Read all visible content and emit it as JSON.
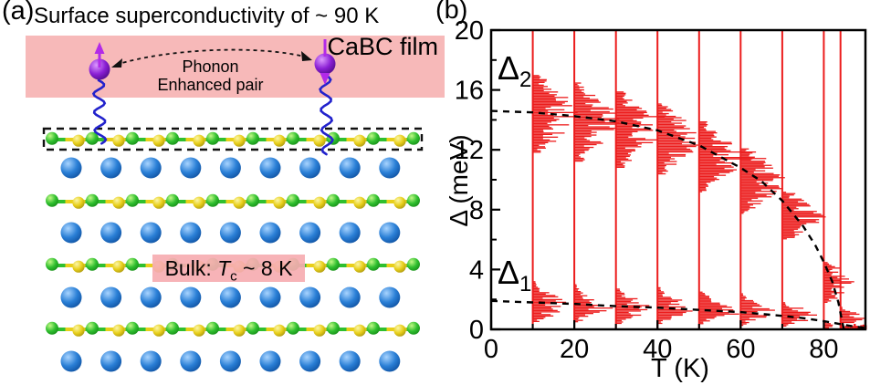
{
  "panel_a": {
    "label": "(a)",
    "title": "Surface superconductivity of ~ 90 K",
    "film_label": "CaBC film",
    "phonon_label_line1": "Phonon",
    "phonon_label_line2": "Enhanced pair",
    "bulk_label": {
      "prefix": "Bulk: ",
      "symbol": "T",
      "subscript": "c",
      "suffix": " ~ 8 K"
    },
    "colors": {
      "film_band": "#f7b9b9",
      "bulk_box": "#f6adb1",
      "ca_atom": "#2a7fd6",
      "atom_green": "#2fbf2f",
      "atom_yellow": "#e8cf1a",
      "pair_atom": "#8a1fd4",
      "spin_arrow": "#b22ae8",
      "phonon_wave": "#2222cc",
      "interaction_arrow": "#111111"
    }
  },
  "panel_b": {
    "label": "(b)"
  },
  "chart_data": {
    "type": "bar",
    "subtype": "horizontal gap-distribution histograms vs temperature with dashed BCS-like fit curves",
    "title": "",
    "xlabel": "T (K)",
    "ylabel": "Δ (meV)",
    "xlim": [
      0,
      90
    ],
    "ylim": [
      0,
      20
    ],
    "x_major_ticks": [
      0,
      20,
      40,
      60,
      80
    ],
    "x_minor_ticks": [
      10,
      30,
      50,
      70,
      90
    ],
    "y_major_ticks": [
      0,
      4,
      8,
      12,
      16,
      20
    ],
    "y_minor_ticks": [
      2,
      6,
      10,
      14,
      18
    ],
    "grid": false,
    "histogram_color": "#ec1c1c",
    "curve_color": "#000000",
    "temperatures": [
      10,
      20,
      30,
      40,
      50,
      60,
      70,
      80,
      84
    ],
    "distributions": [
      {
        "T": 10,
        "delta2_range": [
          11.8,
          17.0
        ],
        "delta1_range": [
          0.5,
          3.4
        ]
      },
      {
        "T": 20,
        "delta2_range": [
          11.2,
          16.5
        ],
        "delta1_range": [
          0.5,
          3.2
        ]
      },
      {
        "T": 30,
        "delta2_range": [
          10.8,
          15.9
        ],
        "delta1_range": [
          0.4,
          3.0
        ]
      },
      {
        "T": 40,
        "delta2_range": [
          10.4,
          15.1
        ],
        "delta1_range": [
          0.4,
          3.0
        ]
      },
      {
        "T": 50,
        "delta2_range": [
          9.2,
          13.9
        ],
        "delta1_range": [
          0.4,
          2.8
        ]
      },
      {
        "T": 60,
        "delta2_range": [
          7.8,
          12.1
        ],
        "delta1_range": [
          0.3,
          2.6
        ]
      },
      {
        "T": 70,
        "delta2_range": [
          6.0,
          9.2
        ],
        "delta1_range": [
          0.2,
          2.0
        ]
      },
      {
        "T": 80,
        "delta2_range": [
          1.8,
          4.5
        ],
        "delta1_range": [
          0.0,
          0.6
        ]
      },
      {
        "T": 84,
        "delta2_range": null,
        "delta1_range": [
          0.3,
          1.6
        ]
      }
    ],
    "zero_smear": {
      "T_range": [
        84,
        90
      ],
      "delta_range": [
        0,
        0.3
      ]
    },
    "series": [
      {
        "name": "Δ2 dashed fit",
        "points": [
          [
            0,
            14.6
          ],
          [
            10,
            14.5
          ],
          [
            20,
            14.25
          ],
          [
            30,
            13.9
          ],
          [
            40,
            13.3
          ],
          [
            50,
            12.3
          ],
          [
            60,
            10.8
          ],
          [
            65,
            9.9
          ],
          [
            70,
            8.6
          ],
          [
            75,
            6.9
          ],
          [
            78,
            5.6
          ],
          [
            80,
            4.5
          ],
          [
            82,
            3.2
          ],
          [
            83.5,
            1.8
          ],
          [
            84.5,
            0.4
          ],
          [
            84.8,
            0.05
          ]
        ]
      },
      {
        "name": "Δ1 dashed fit",
        "points": [
          [
            0,
            1.9
          ],
          [
            10,
            1.8
          ],
          [
            20,
            1.7
          ],
          [
            30,
            1.55
          ],
          [
            40,
            1.45
          ],
          [
            50,
            1.3
          ],
          [
            60,
            1.15
          ],
          [
            70,
            0.9
          ],
          [
            75,
            0.75
          ],
          [
            80,
            0.55
          ],
          [
            84,
            0.35
          ],
          [
            87,
            0.2
          ],
          [
            90,
            0.1
          ]
        ]
      }
    ],
    "annotations": [
      {
        "symbol": "Δ",
        "sub": "2",
        "T": 3,
        "delta": 17.5
      },
      {
        "symbol": "Δ",
        "sub": "1",
        "T": 3,
        "delta": 3.8
      }
    ]
  }
}
